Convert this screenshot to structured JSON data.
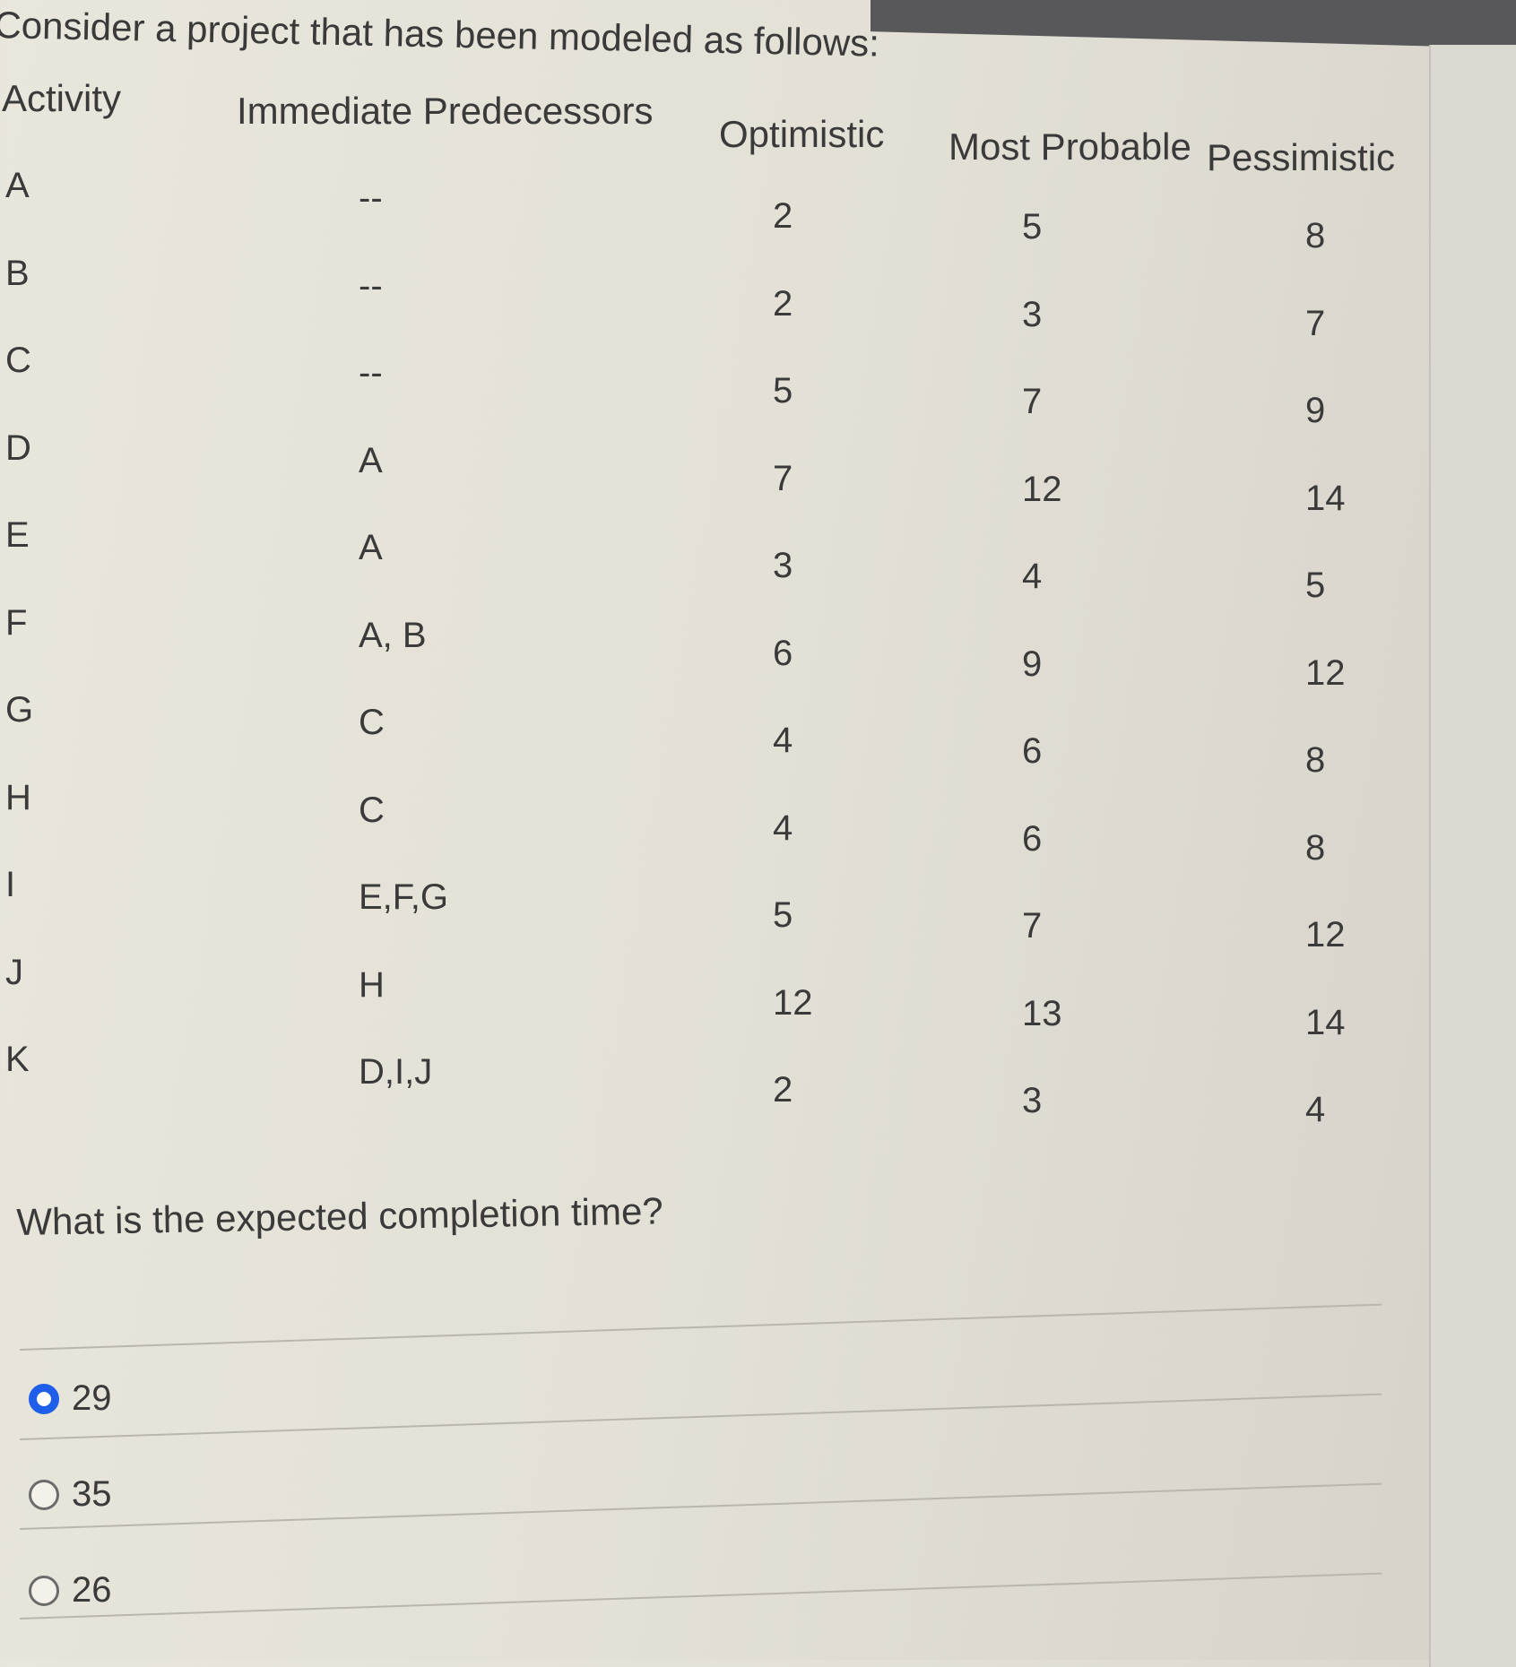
{
  "title": "Consider a project that has been modeled as follows:",
  "headers": [
    "Activity",
    "Immediate Predecessors",
    "Optimistic",
    "Most Probable",
    "Pessimistic"
  ],
  "rows": [
    {
      "activity": "A",
      "pred": "--",
      "opt": "2",
      "mp": "5",
      "pess": "8"
    },
    {
      "activity": "B",
      "pred": "--",
      "opt": "2",
      "mp": "3",
      "pess": "7"
    },
    {
      "activity": "C",
      "pred": "--",
      "opt": "5",
      "mp": "7",
      "pess": "9"
    },
    {
      "activity": "D",
      "pred": "A",
      "opt": "7",
      "mp": "12",
      "pess": "14"
    },
    {
      "activity": "E",
      "pred": "A",
      "opt": "3",
      "mp": "4",
      "pess": "5"
    },
    {
      "activity": "F",
      "pred": "A, B",
      "opt": "6",
      "mp": "9",
      "pess": "12"
    },
    {
      "activity": "G",
      "pred": "C",
      "opt": "4",
      "mp": "6",
      "pess": "8"
    },
    {
      "activity": "H",
      "pred": "C",
      "opt": "4",
      "mp": "6",
      "pess": "8"
    },
    {
      "activity": "I",
      "pred": "E,F,G",
      "opt": "5",
      "mp": "7",
      "pess": "12"
    },
    {
      "activity": "J",
      "pred": "H",
      "opt": "12",
      "mp": "13",
      "pess": "14"
    },
    {
      "activity": "K",
      "pred": "D,I,J",
      "opt": "2",
      "mp": "3",
      "pess": "4"
    }
  ],
  "question": "What is the expected completion time?",
  "options": [
    {
      "label": "29",
      "selected": true
    },
    {
      "label": "35",
      "selected": false
    },
    {
      "label": "26",
      "selected": false
    }
  ],
  "colors": {
    "radio_selected": "#1f5ee8"
  }
}
